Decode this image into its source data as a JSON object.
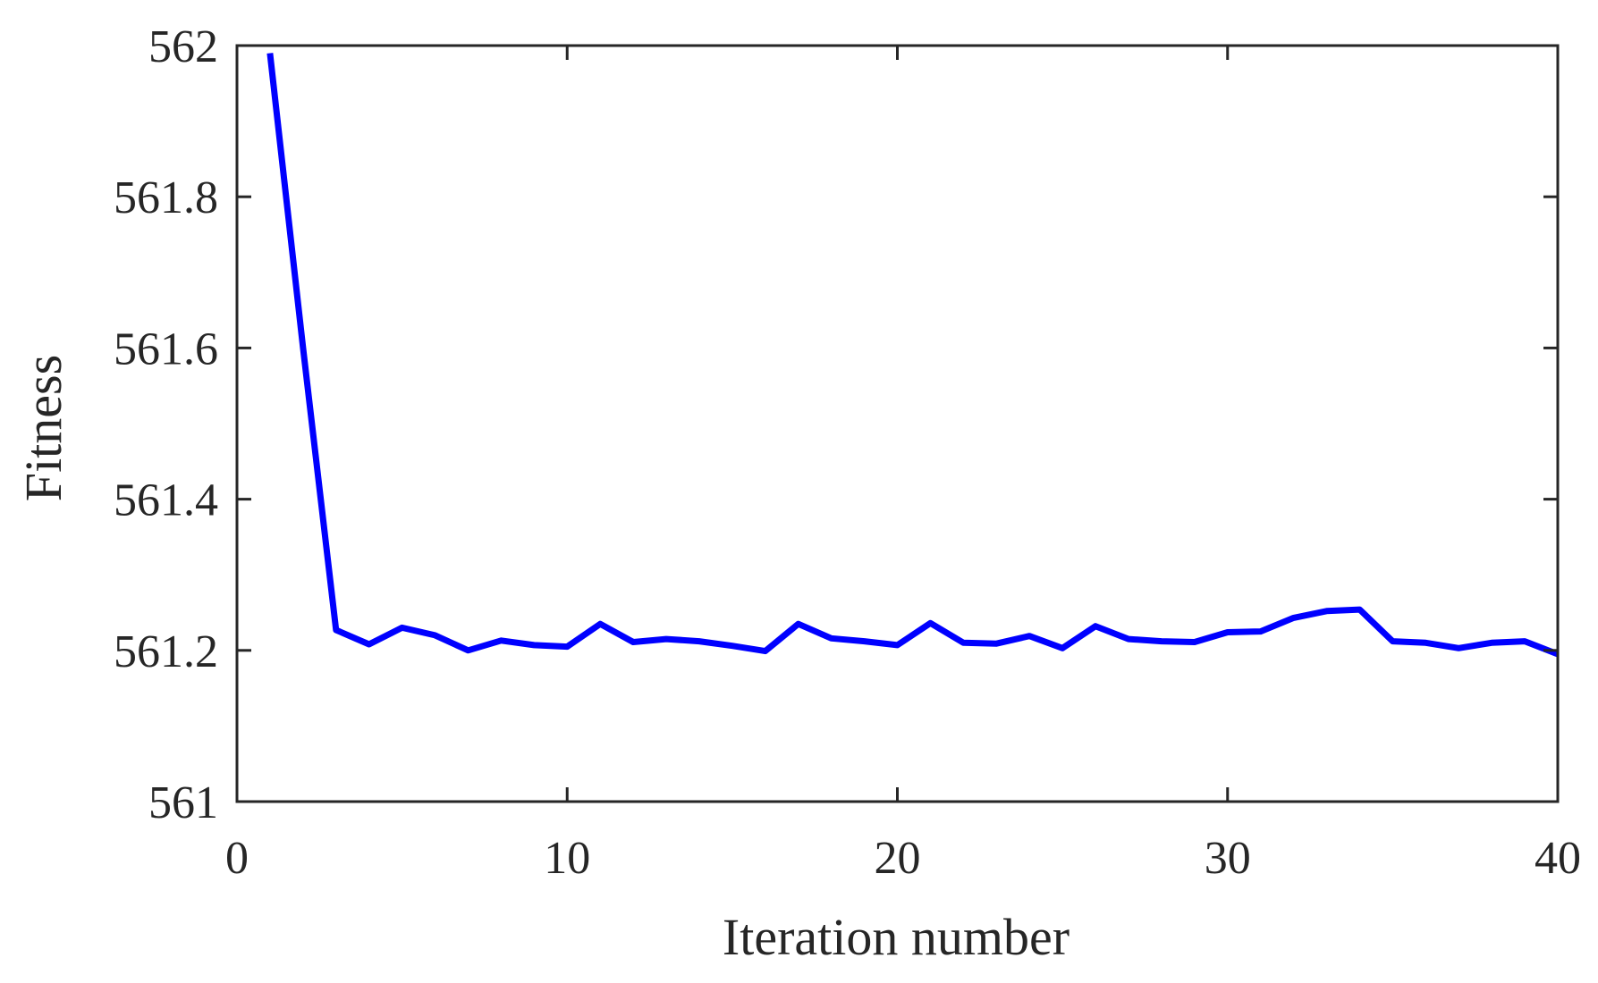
{
  "chart_data": {
    "type": "line",
    "title": "",
    "xlabel": "Iteration number",
    "ylabel": "Fitness",
    "xlim": [
      0,
      40
    ],
    "ylim": [
      561,
      562
    ],
    "xticks": [
      0,
      10,
      20,
      30,
      40
    ],
    "xtick_labels": [
      "0",
      "10",
      "20",
      "30",
      "40"
    ],
    "yticks": [
      561,
      561.2,
      561.4,
      561.6,
      561.8,
      562
    ],
    "ytick_labels": [
      "561",
      "561.2",
      "561.4",
      "561.6",
      "561.8",
      "562"
    ],
    "grid": false,
    "legend": "none",
    "series": [
      {
        "color": "#0000ff",
        "x": [
          1,
          2,
          3,
          4,
          5,
          6,
          7,
          8,
          9,
          10,
          11,
          12,
          13,
          14,
          15,
          16,
          17,
          18,
          19,
          20,
          21,
          22,
          23,
          24,
          25,
          26,
          27,
          28,
          29,
          30,
          31,
          32,
          33,
          34,
          35,
          36,
          37,
          38,
          39,
          40
        ],
        "y": [
          561.99,
          561.6,
          561.227,
          561.208,
          561.23,
          561.22,
          561.2,
          561.213,
          561.207,
          561.205,
          561.235,
          561.211,
          561.215,
          561.212,
          561.206,
          561.199,
          561.235,
          561.216,
          561.212,
          561.207,
          561.236,
          561.21,
          561.209,
          561.219,
          561.203,
          561.232,
          561.215,
          561.212,
          561.211,
          561.224,
          561.225,
          561.243,
          561.252,
          561.254,
          561.212,
          561.21,
          561.203,
          561.21,
          561.212,
          561.195
        ]
      }
    ]
  },
  "colors": {
    "axis": "#262626",
    "line": "#0000ff",
    "background": "#ffffff"
  }
}
